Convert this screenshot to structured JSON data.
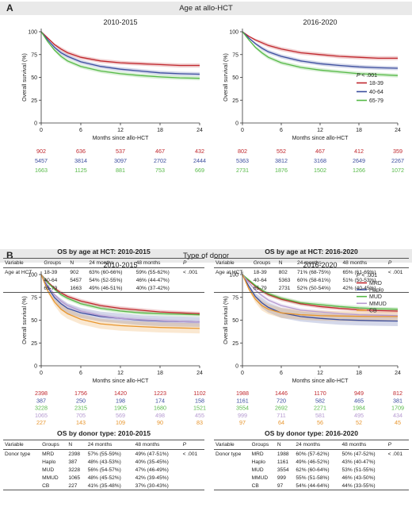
{
  "panelA": {
    "letter": "A",
    "title": "Age at allo-HCT",
    "pval_label": "P < .001",
    "group_labels": [
      "18-39",
      "40-64",
      "65-79"
    ],
    "colors": [
      "#c0272d",
      "#3c4e9e",
      "#56b947"
    ],
    "at_risk": {
      "2010-2015": [
        [
          902,
          636,
          537,
          467,
          432
        ],
        [
          5457,
          3814,
          3097,
          2702,
          2444
        ],
        [
          1663,
          1125,
          881,
          753,
          669
        ]
      ],
      "2016-2020": [
        [
          802,
          552,
          467,
          412,
          359
        ],
        [
          5363,
          3812,
          3168,
          2649,
          2267
        ],
        [
          2731,
          1876,
          1502,
          1266,
          1072
        ]
      ]
    },
    "tables": [
      {
        "caption": "OS by age at HCT: 2010-2015",
        "headers": [
          "Variable",
          "Groups",
          "N",
          "24 months",
          "48 months",
          "P"
        ],
        "rows": [
          [
            "Age at HCT",
            "18-39",
            "902",
            "63% (60-66%)",
            "59% (55-62%)",
            "< .001"
          ],
          [
            "",
            "40-64",
            "5457",
            "54% (52-55%)",
            "46% (44-47%)",
            ""
          ],
          [
            "",
            "65-79",
            "1663",
            "49% (46-51%)",
            "40% (37-42%)",
            ""
          ]
        ]
      },
      {
        "caption": "OS by age at HCT: 2016-2020",
        "headers": [
          "Variable",
          "Groups",
          "N",
          "24 months",
          "48 months",
          "P"
        ],
        "rows": [
          [
            "Age at HCT",
            "18-39",
            "802",
            "71% (68-75%)",
            "65% (61-69%)",
            "< .001"
          ],
          [
            "",
            "40-64",
            "5363",
            "60% (58-61%)",
            "51% (50-53%)",
            ""
          ],
          [
            "",
            "65-79",
            "2731",
            "52% (50-54%)",
            "42% (40-45%)",
            ""
          ]
        ]
      }
    ]
  },
  "panelB": {
    "letter": "B",
    "title": "Type of donor",
    "pval_label": "P < .001",
    "group_labels": [
      "MRD",
      "Haplo",
      "MUD",
      "MMUD",
      "CB"
    ],
    "colors": [
      "#c0272d",
      "#3c4e9e",
      "#56b947",
      "#b59ad0",
      "#e8962e"
    ],
    "at_risk": {
      "2010-2015": [
        [
          2398,
          1756,
          1420,
          1223,
          1102
        ],
        [
          387,
          250,
          198,
          174,
          158
        ],
        [
          3228,
          2315,
          1905,
          1680,
          1521
        ],
        [
          1065,
          705,
          569,
          498,
          455
        ],
        [
          227,
          143,
          109,
          90,
          83
        ]
      ],
      "2016-2020": [
        [
          1988,
          1446,
          1170,
          949,
          812
        ],
        [
          1161,
          720,
          582,
          465,
          381
        ],
        [
          3554,
          2692,
          2271,
          1984,
          1709
        ],
        [
          999,
          711,
          581,
          495,
          434
        ],
        [
          97,
          64,
          56,
          52,
          45
        ]
      ]
    },
    "tables": [
      {
        "caption": "OS by donor type: 2010-2015",
        "headers": [
          "Variable",
          "Groups",
          "N",
          "24 months",
          "48 months",
          "P"
        ],
        "rows": [
          [
            "Donor type",
            "MRD",
            "2398",
            "57% (55-59%)",
            "49% (47-51%)",
            "< .001"
          ],
          [
            "",
            "Haplo",
            "387",
            "48% (43-53%)",
            "40% (35-45%)",
            ""
          ],
          [
            "",
            "MUD",
            "3228",
            "56% (54-57%)",
            "47% (46-49%)",
            ""
          ],
          [
            "",
            "MMUD",
            "1065",
            "48% (45-52%)",
            "42% (39-45%)",
            ""
          ],
          [
            "",
            "CB",
            "227",
            "41% (35-48%)",
            "37% (30-43%)",
            ""
          ]
        ]
      },
      {
        "caption": "OS by donor type: 2016-2020",
        "headers": [
          "Variable",
          "Groups",
          "N",
          "24 months",
          "48 months",
          "P"
        ],
        "rows": [
          [
            "Donor type",
            "MRD",
            "1988",
            "60% (57-62%)",
            "50% (47-52%)",
            "< .001"
          ],
          [
            "",
            "Haplo",
            "1161",
            "49% (46-52%)",
            "43% (40-47%)",
            ""
          ],
          [
            "",
            "MUD",
            "3554",
            "62% (60-64%)",
            "53% (51-55%)",
            ""
          ],
          [
            "",
            "MMUD",
            "999",
            "55% (51-58%)",
            "46% (43-50%)",
            ""
          ],
          [
            "",
            "CB",
            "97",
            "54% (44-64%)",
            "44% (33-55%)",
            ""
          ]
        ]
      }
    ]
  },
  "chart_data": [
    {
      "type": "line",
      "title": "2010-2015",
      "xlabel": "Months since allo-HCT",
      "ylabel": "Overall survival (%)",
      "xlim": [
        0,
        24
      ],
      "ylim": [
        0,
        100
      ],
      "xticks": [
        0,
        6,
        12,
        18,
        24
      ],
      "yticks": [
        0,
        25,
        50,
        75,
        100
      ],
      "x": [
        0,
        1,
        2,
        3,
        4,
        6,
        9,
        12,
        15,
        18,
        21,
        24
      ],
      "series": [
        {
          "name": "18-39",
          "values": [
            100,
            93,
            86,
            81,
            77,
            72,
            68,
            66,
            65,
            64,
            63,
            63
          ]
        },
        {
          "name": "40-64",
          "values": [
            100,
            91,
            83,
            77,
            73,
            67,
            62,
            59,
            57,
            55,
            54,
            53.5
          ]
        },
        {
          "name": "65-79",
          "values": [
            100,
            89,
            80,
            73,
            68,
            62,
            57,
            54,
            52,
            50.5,
            49.5,
            49
          ]
        }
      ]
    },
    {
      "type": "line",
      "title": "2016-2020",
      "xlabel": "Months since allo-HCT",
      "ylabel": "Overall survival (%)",
      "xlim": [
        0,
        24
      ],
      "ylim": [
        0,
        100
      ],
      "xticks": [
        0,
        6,
        12,
        18,
        24
      ],
      "yticks": [
        0,
        25,
        50,
        75,
        100
      ],
      "x": [
        0,
        1,
        2,
        3,
        4,
        6,
        9,
        12,
        15,
        18,
        21,
        24
      ],
      "series": [
        {
          "name": "18-39",
          "values": [
            100,
            95,
            91,
            88,
            85,
            81,
            77,
            75,
            73,
            72,
            71,
            71
          ]
        },
        {
          "name": "40-64",
          "values": [
            100,
            93,
            87,
            82,
            78,
            73,
            68,
            65,
            63,
            61.5,
            60.5,
            60
          ]
        },
        {
          "name": "65-79",
          "values": [
            100,
            91,
            83,
            77,
            72,
            66,
            61,
            58,
            56,
            54,
            53,
            52
          ]
        }
      ]
    },
    {
      "type": "line",
      "title": "2010-2015",
      "xlabel": "Months since allo-HCT",
      "ylabel": "Overall survival (%)",
      "xlim": [
        0,
        24
      ],
      "ylim": [
        0,
        100
      ],
      "xticks": [
        0,
        6,
        12,
        18,
        24
      ],
      "yticks": [
        0,
        25,
        50,
        75,
        100
      ],
      "x": [
        0,
        1,
        2,
        3,
        4,
        6,
        9,
        12,
        15,
        18,
        21,
        24
      ],
      "series": [
        {
          "name": "MRD",
          "values": [
            100,
            92,
            85,
            80,
            76,
            71,
            66,
            63,
            61,
            59,
            58,
            57
          ]
        },
        {
          "name": "Haplo",
          "values": [
            100,
            86,
            75,
            68,
            63,
            58,
            54,
            52,
            50,
            49,
            48.5,
            48
          ]
        },
        {
          "name": "MUD",
          "values": [
            100,
            91,
            84,
            78,
            74,
            68,
            63,
            60,
            58,
            57,
            56.5,
            56
          ]
        },
        {
          "name": "MMUD",
          "values": [
            100,
            88,
            78,
            71,
            66,
            60,
            55,
            52,
            50.5,
            49.5,
            48.5,
            48
          ]
        },
        {
          "name": "CB",
          "values": [
            100,
            82,
            70,
            62,
            57,
            51,
            46,
            44,
            43,
            42,
            41.5,
            41
          ]
        }
      ]
    },
    {
      "type": "line",
      "title": "2016-2020",
      "xlabel": "Months since allo-HCT",
      "ylabel": "Overall survival (%)",
      "xlim": [
        0,
        24
      ],
      "ylim": [
        0,
        100
      ],
      "xticks": [
        0,
        6,
        12,
        18,
        24
      ],
      "yticks": [
        0,
        25,
        50,
        75,
        100
      ],
      "x": [
        0,
        1,
        2,
        3,
        4,
        6,
        9,
        12,
        15,
        18,
        21,
        24
      ],
      "series": [
        {
          "name": "MRD",
          "values": [
            100,
            93,
            87,
            82,
            78,
            73,
            68,
            65,
            63,
            61.5,
            60.5,
            60
          ]
        },
        {
          "name": "Haplo",
          "values": [
            100,
            87,
            76,
            69,
            64,
            58,
            54,
            52,
            50.5,
            49.8,
            49.3,
            49
          ]
        },
        {
          "name": "MUD",
          "values": [
            100,
            94,
            88,
            83,
            79,
            74,
            69,
            67,
            65,
            63.5,
            62.5,
            62
          ]
        },
        {
          "name": "MMUD",
          "values": [
            100,
            91,
            83,
            77,
            72,
            66,
            61,
            59,
            57,
            56,
            55.5,
            55
          ]
        },
        {
          "name": "CB",
          "values": [
            100,
            84,
            73,
            66,
            62,
            58,
            56,
            55,
            54.5,
            54.2,
            54,
            54
          ]
        }
      ]
    }
  ]
}
